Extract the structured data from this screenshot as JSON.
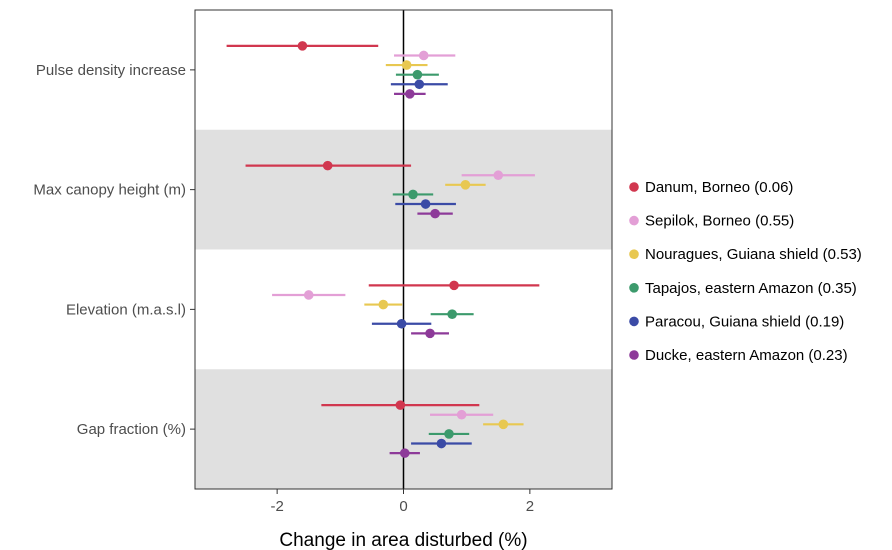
{
  "chart_data": {
    "type": "scatter",
    "subtype": "forest-plot (point estimate with confidence interval)",
    "title": "",
    "xlabel": "Change in area disturbed (%)",
    "ylabel": "",
    "xlim": [
      -3.3,
      3.3
    ],
    "xticks": [
      -2,
      0,
      2
    ],
    "xtick_labels": [
      "-2",
      "0",
      "2"
    ],
    "reference_line_x": 0,
    "categories": [
      "Pulse density increase",
      "Max canopy height (m)",
      "Elevation (m.a.s.l)",
      "Gap fraction (%)"
    ],
    "shaded_categories": [
      "Max canopy height (m)",
      "Gap fraction (%)"
    ],
    "grid": false,
    "legend_position": "right",
    "series": [
      {
        "name": "Danum, Borneo (0.06)",
        "color": "#d1374f",
        "values": [
          {
            "category": "Pulse density increase",
            "est": -1.6,
            "lo": -2.8,
            "hi": -0.4
          },
          {
            "category": "Max canopy height (m)",
            "est": -1.2,
            "lo": -2.5,
            "hi": 0.12
          },
          {
            "category": "Elevation (m.a.s.l)",
            "est": 0.8,
            "lo": -0.55,
            "hi": 2.15
          },
          {
            "category": "Gap fraction (%)",
            "est": -0.05,
            "lo": -1.3,
            "hi": 1.2
          }
        ]
      },
      {
        "name": "Sepilok, Borneo (0.55)",
        "color": "#e39fd6",
        "values": [
          {
            "category": "Pulse density increase",
            "est": 0.32,
            "lo": -0.15,
            "hi": 0.82
          },
          {
            "category": "Max canopy height (m)",
            "est": 1.5,
            "lo": 0.92,
            "hi": 2.08
          },
          {
            "category": "Elevation (m.a.s.l)",
            "est": -1.5,
            "lo": -2.08,
            "hi": -0.92
          },
          {
            "category": "Gap fraction (%)",
            "est": 0.92,
            "lo": 0.42,
            "hi": 1.42
          }
        ]
      },
      {
        "name": "Nouragues, Guiana shield (0.53)",
        "color": "#e8c851",
        "values": [
          {
            "category": "Pulse density increase",
            "est": 0.05,
            "lo": -0.28,
            "hi": 0.38
          },
          {
            "category": "Max canopy height (m)",
            "est": 0.98,
            "lo": 0.66,
            "hi": 1.3
          },
          {
            "category": "Elevation (m.a.s.l)",
            "est": -0.32,
            "lo": -0.62,
            "hi": -0.02
          },
          {
            "category": "Gap fraction (%)",
            "est": 1.58,
            "lo": 1.26,
            "hi": 1.9
          }
        ]
      },
      {
        "name": "Tapajos, eastern Amazon (0.35)",
        "color": "#3c9a6c",
        "values": [
          {
            "category": "Pulse density increase",
            "est": 0.22,
            "lo": -0.12,
            "hi": 0.56
          },
          {
            "category": "Max canopy height (m)",
            "est": 0.15,
            "lo": -0.17,
            "hi": 0.47
          },
          {
            "category": "Elevation (m.a.s.l)",
            "est": 0.77,
            "lo": 0.43,
            "hi": 1.11
          },
          {
            "category": "Gap fraction (%)",
            "est": 0.72,
            "lo": 0.4,
            "hi": 1.04
          }
        ]
      },
      {
        "name": "Paracou, Guiana shield (0.19)",
        "color": "#3b4ba6",
        "values": [
          {
            "category": "Pulse density increase",
            "est": 0.25,
            "lo": -0.2,
            "hi": 0.7
          },
          {
            "category": "Max canopy height (m)",
            "est": 0.35,
            "lo": -0.13,
            "hi": 0.83
          },
          {
            "category": "Elevation (m.a.s.l)",
            "est": -0.03,
            "lo": -0.5,
            "hi": 0.44
          },
          {
            "category": "Gap fraction (%)",
            "est": 0.6,
            "lo": 0.12,
            "hi": 1.08
          }
        ]
      },
      {
        "name": "Ducke, eastern Amazon (0.23)",
        "color": "#8d3a99",
        "values": [
          {
            "category": "Pulse density increase",
            "est": 0.1,
            "lo": -0.15,
            "hi": 0.35
          },
          {
            "category": "Max canopy height (m)",
            "est": 0.5,
            "lo": 0.22,
            "hi": 0.78
          },
          {
            "category": "Elevation (m.a.s.l)",
            "est": 0.42,
            "lo": 0.12,
            "hi": 0.72
          },
          {
            "category": "Gap fraction (%)",
            "est": 0.02,
            "lo": -0.22,
            "hi": 0.26
          }
        ]
      }
    ]
  }
}
